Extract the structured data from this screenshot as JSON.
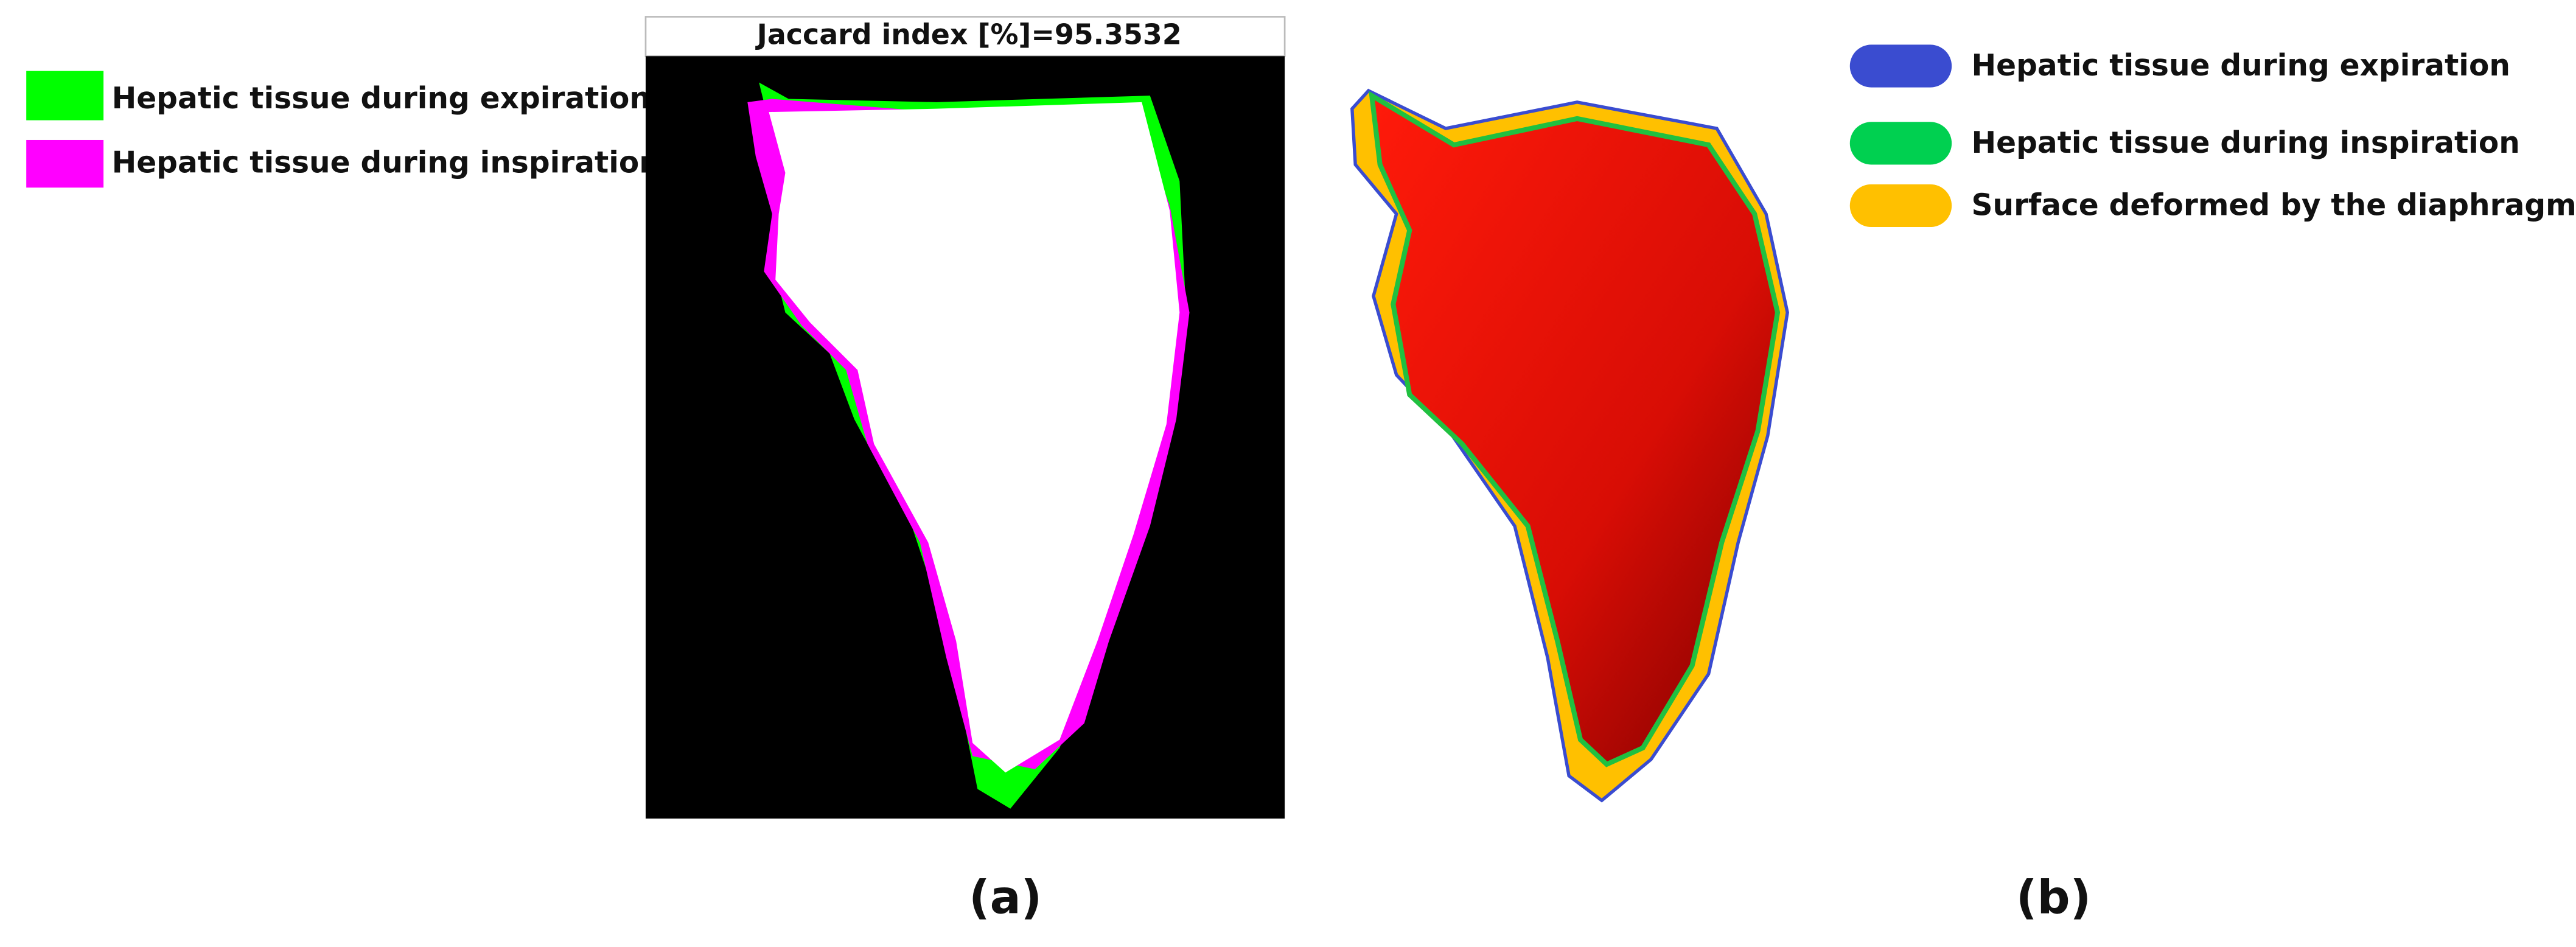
{
  "panel_a": {
    "title": "Jaccard index [%]=95.3532",
    "legend": [
      "Hepatic tissue during expiration",
      "Hepatic tissue during inspiration"
    ],
    "label": "(a)"
  },
  "panel_b": {
    "legend": [
      "Hepatic tissue during expiration",
      "Hepatic tissue during inspiration",
      "Surface deformed by the diaphragm"
    ],
    "label": "(b)"
  }
}
